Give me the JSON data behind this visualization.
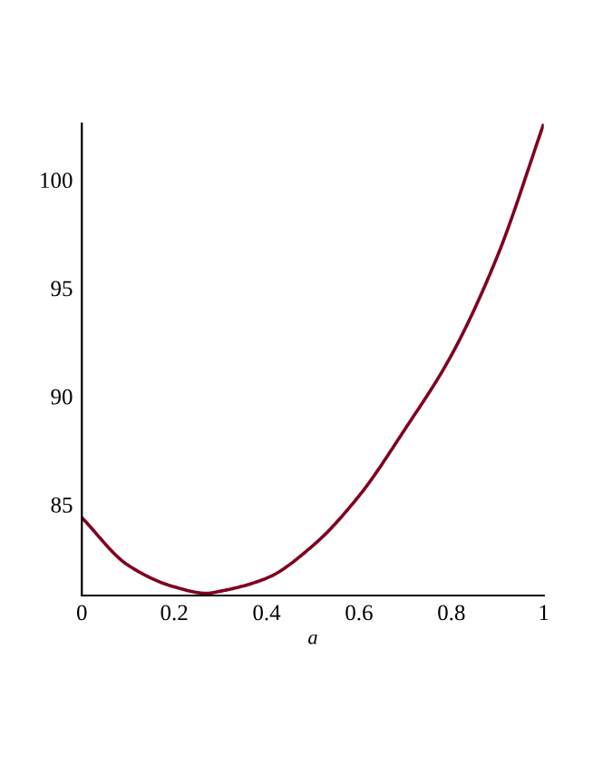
{
  "chart_data": {
    "type": "line",
    "xlabel": "a",
    "x": [
      0,
      0.1,
      0.2,
      0.27,
      0.3,
      0.4,
      0.5,
      0.6,
      0.7,
      0.8,
      0.9,
      1
    ],
    "series": [
      {
        "color": "#800020",
        "values": [
          84.4,
          82.2,
          81.2,
          80.9,
          81.0,
          81.6,
          83.1,
          85.4,
          88.5,
          91.9,
          96.5,
          102.6
        ]
      }
    ],
    "xlim": [
      0,
      1
    ],
    "ylim": [
      80.8,
      102.6
    ],
    "xticks": [
      0,
      0.2,
      0.4,
      0.6,
      0.8,
      1
    ],
    "yticks": [
      85,
      90,
      95,
      100
    ],
    "grid": false,
    "marker": "none",
    "line_style": "solid"
  }
}
